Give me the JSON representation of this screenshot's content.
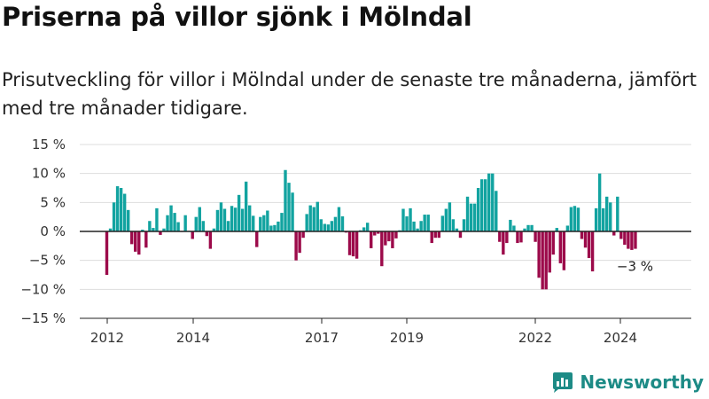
{
  "title": "Priserna på villor sjönk i Mölndal",
  "subtitle": "Prisutveckling för villor i Mölndal under de senaste tre månaderna, jämfört med tre månader tidigare.",
  "brand": "Newsworthy",
  "colors": {
    "positive": "#12a3a0",
    "negative": "#9c0a4a",
    "grid": "#dddddd",
    "axis": "#222222"
  },
  "chart_data": {
    "type": "bar",
    "ylim": [
      -15,
      15
    ],
    "y_ticks": [
      15,
      10,
      5,
      0,
      -5,
      -10,
      -15
    ],
    "y_tick_labels": [
      "15 %",
      "10 %",
      "5 %",
      "0 %",
      "−5 %",
      "−10 %",
      "−15 %"
    ],
    "x_ticks": [
      "2012",
      "2014",
      "2017",
      "2019",
      "2022",
      "2024"
    ],
    "grid": true,
    "annotation": "−3 %",
    "series": [
      {
        "values": [
          -7.5,
          0.5,
          5,
          7.8,
          7.5,
          6.5,
          3.7,
          -2.2,
          -3.5,
          -4,
          0.3,
          -2.8,
          1.8,
          0.6,
          4,
          -0.6,
          0.5,
          2.8,
          4.5,
          3.2,
          1.6,
          -0.1,
          2.8,
          0.1,
          -1.3,
          2.5,
          4.2,
          1.8,
          -0.8,
          -3,
          0.5,
          3.7,
          5,
          3.9,
          1.8,
          4.4,
          4.1,
          6.3,
          3.9,
          8.6,
          4.5,
          2.7,
          -2.7,
          2.5,
          2.8,
          3.6,
          1,
          1.1,
          1.7,
          3.2,
          10.6,
          8.4,
          6.7,
          -5,
          -3.7,
          -1.1,
          3,
          4.5,
          4.2,
          5.1,
          2.1,
          1.3,
          1.2,
          1.8,
          2.5,
          4.2,
          2.6,
          -0.2,
          -4.1,
          -4.3,
          -4.7,
          0.2,
          0.7,
          1.5,
          -2.9,
          -0.7,
          -0.4,
          -6,
          -2.4,
          -1.7,
          -2.9,
          -1.2,
          0.2,
          3.9,
          2.6,
          4,
          1.7,
          0.5,
          1.8,
          2.9,
          2.9,
          -2,
          -1.1,
          -1.1,
          2.7,
          3.9,
          5,
          2.1,
          0.5,
          -1.1,
          2.1,
          6,
          4.8,
          4.8,
          7.5,
          9,
          9,
          10,
          10,
          7,
          -1.8,
          -4,
          -2,
          2,
          1,
          -2,
          -1.9,
          0.5,
          1.1,
          1.1,
          -1.8,
          -8,
          -10,
          -10,
          -7.1,
          -4,
          0.6,
          -5.5,
          -6.7,
          1,
          4.2,
          4.4,
          4.1,
          -1.3,
          -2.8,
          -4.6,
          -6.9,
          4,
          10,
          4,
          6,
          5,
          -0.7,
          6,
          -1.3,
          -2.3,
          -3,
          -3.2,
          -3
        ]
      }
    ]
  }
}
